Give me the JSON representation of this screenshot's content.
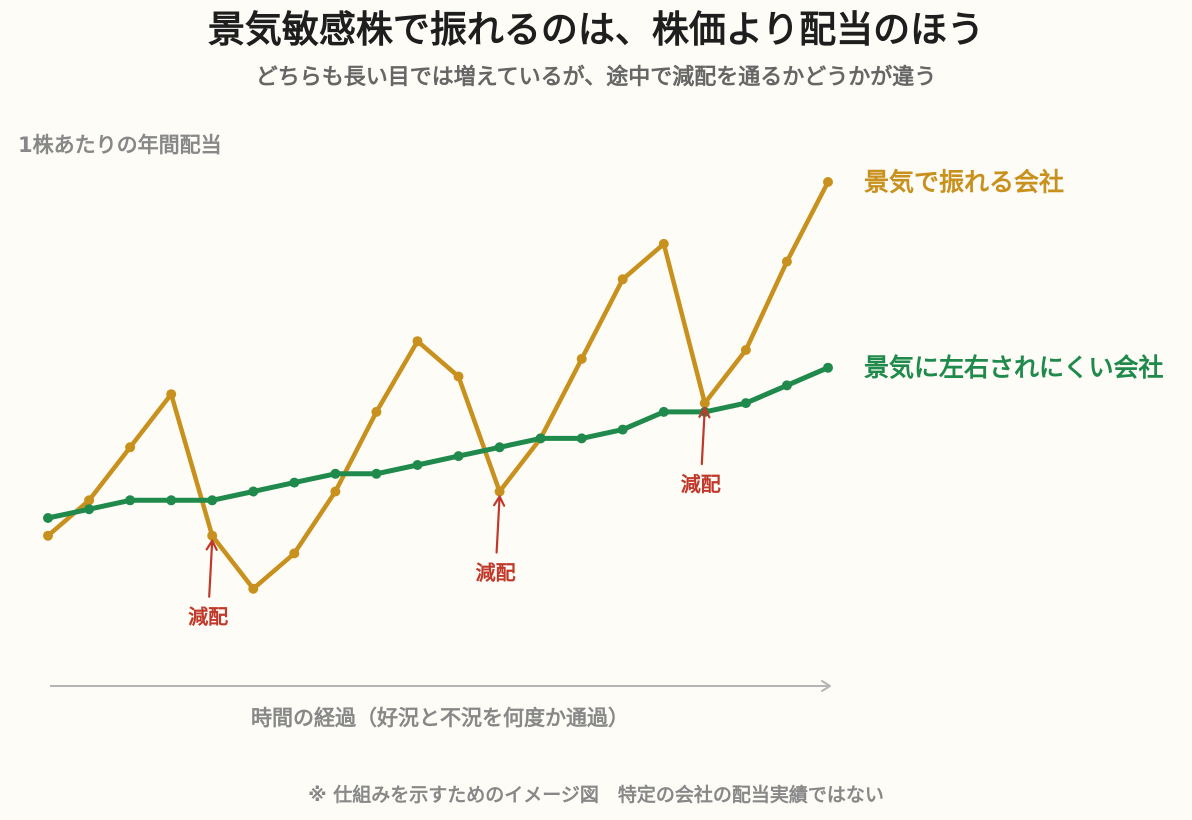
{
  "colors": {
    "background": "#FDFCF6",
    "title": "#1E1E1E",
    "subtitle": "#666666",
    "muted_text": "#888888",
    "axis_arrow": "#B5B5B5",
    "annotation": "#C0392B"
  },
  "chart_data": {
    "type": "line",
    "title": "景気敏感株で振れるのは、株価より配当のほう",
    "subtitle": "どちらも長い目では増えているが、途中で減配を通るかどうかが違う",
    "ylabel": "1株あたりの年間配当",
    "xlabel": "時間の経過（好況と不況を何度か通過）",
    "x": [
      1,
      2,
      3,
      4,
      5,
      6,
      7,
      8,
      9,
      10,
      11,
      12,
      13,
      14,
      15,
      16,
      17,
      18,
      19,
      20
    ],
    "ylim": [
      0,
      60
    ],
    "grid": false,
    "markers": true,
    "legend": "right",
    "series": [
      {
        "name": "景気で振れる会社",
        "color": "#C8911E",
        "values": [
          17,
          21,
          27,
          33,
          17,
          11,
          15,
          22,
          31,
          39,
          35,
          22,
          28,
          37,
          46,
          50,
          32,
          38,
          48,
          57
        ]
      },
      {
        "name": "景気に左右されにくい会社",
        "color": "#1F8A4C",
        "values": [
          19,
          20,
          21,
          21,
          21,
          22,
          23,
          24,
          24,
          25,
          26,
          27,
          28,
          28,
          29,
          31,
          31,
          32,
          34,
          36
        ]
      }
    ],
    "annotations": [
      {
        "text": "減配",
        "series": 0,
        "x": 5
      },
      {
        "text": "減配",
        "series": 0,
        "x": 12
      },
      {
        "text": "減配",
        "series": 0,
        "x": 17
      }
    ],
    "footnote": "※ 仕組みを示すためのイメージ図　特定の会社の配当実績ではない"
  }
}
